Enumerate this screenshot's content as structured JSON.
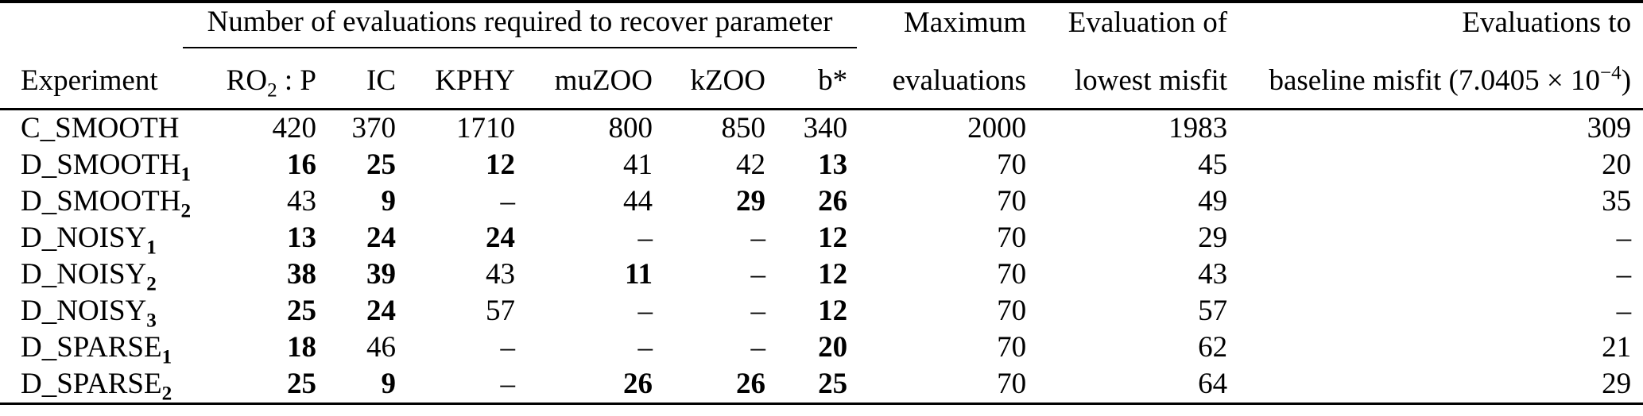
{
  "table": {
    "group_header": "Number of evaluations required to recover parameter",
    "columns": {
      "experiment": "Experiment",
      "maximum": {
        "line1": "Maximum",
        "line2": "evaluations"
      },
      "lowest_misfit": {
        "line1": "Evaluation of",
        "line2": "lowest misfit"
      },
      "baseline": {
        "line1": "Evaluations to",
        "line2_pre": "baseline misfit (7.0405 × 10",
        "line2_sup": "−4",
        "line2_post": ")"
      }
    },
    "param_headers": [
      {
        "pre": "RO",
        "sub": "2",
        "post": " : P"
      },
      {
        "pre": "IC",
        "sub": "",
        "post": ""
      },
      {
        "pre": "KPHY",
        "sub": "",
        "post": ""
      },
      {
        "pre": "muZOO",
        "sub": "",
        "post": ""
      },
      {
        "pre": "kZOO",
        "sub": "",
        "post": ""
      },
      {
        "pre": "b*",
        "sub": "",
        "post": ""
      }
    ],
    "rows": [
      {
        "experiment": {
          "base": "C_SMOOTH",
          "sub": ""
        },
        "cells": [
          {
            "v": "420",
            "b": false
          },
          {
            "v": "370",
            "b": false
          },
          {
            "v": "1710",
            "b": false
          },
          {
            "v": "800",
            "b": false
          },
          {
            "v": "850",
            "b": false
          },
          {
            "v": "340",
            "b": false
          },
          {
            "v": "2000",
            "b": false
          },
          {
            "v": "1983",
            "b": false
          },
          {
            "v": "309",
            "b": false
          }
        ]
      },
      {
        "experiment": {
          "base": "D_SMOOTH",
          "sub": "1"
        },
        "cells": [
          {
            "v": "16",
            "b": true
          },
          {
            "v": "25",
            "b": true
          },
          {
            "v": "12",
            "b": true
          },
          {
            "v": "41",
            "b": false
          },
          {
            "v": "42",
            "b": false
          },
          {
            "v": "13",
            "b": true
          },
          {
            "v": "70",
            "b": false
          },
          {
            "v": "45",
            "b": false
          },
          {
            "v": "20",
            "b": false
          }
        ]
      },
      {
        "experiment": {
          "base": "D_SMOOTH",
          "sub": "2"
        },
        "cells": [
          {
            "v": "43",
            "b": false
          },
          {
            "v": "9",
            "b": true
          },
          {
            "v": "–",
            "b": false
          },
          {
            "v": "44",
            "b": false
          },
          {
            "v": "29",
            "b": true
          },
          {
            "v": "26",
            "b": true
          },
          {
            "v": "70",
            "b": false
          },
          {
            "v": "49",
            "b": false
          },
          {
            "v": "35",
            "b": false
          }
        ]
      },
      {
        "experiment": {
          "base": "D_NOISY",
          "sub": "1"
        },
        "cells": [
          {
            "v": "13",
            "b": true
          },
          {
            "v": "24",
            "b": true
          },
          {
            "v": "24",
            "b": true
          },
          {
            "v": "–",
            "b": false
          },
          {
            "v": "–",
            "b": false
          },
          {
            "v": "12",
            "b": true
          },
          {
            "v": "70",
            "b": false
          },
          {
            "v": "29",
            "b": false
          },
          {
            "v": "–",
            "b": false
          }
        ]
      },
      {
        "experiment": {
          "base": "D_NOISY",
          "sub": "2"
        },
        "cells": [
          {
            "v": "38",
            "b": true
          },
          {
            "v": "39",
            "b": true
          },
          {
            "v": "43",
            "b": false
          },
          {
            "v": "11",
            "b": true
          },
          {
            "v": "–",
            "b": false
          },
          {
            "v": "12",
            "b": true
          },
          {
            "v": "70",
            "b": false
          },
          {
            "v": "43",
            "b": false
          },
          {
            "v": "–",
            "b": false
          }
        ]
      },
      {
        "experiment": {
          "base": "D_NOISY",
          "sub": "3"
        },
        "cells": [
          {
            "v": "25",
            "b": true
          },
          {
            "v": "24",
            "b": true
          },
          {
            "v": "57",
            "b": false
          },
          {
            "v": "–",
            "b": false
          },
          {
            "v": "–",
            "b": false
          },
          {
            "v": "12",
            "b": true
          },
          {
            "v": "70",
            "b": false
          },
          {
            "v": "57",
            "b": false
          },
          {
            "v": "–",
            "b": false
          }
        ]
      },
      {
        "experiment": {
          "base": "D_SPARSE",
          "sub": "1"
        },
        "cells": [
          {
            "v": "18",
            "b": true
          },
          {
            "v": "46",
            "b": false
          },
          {
            "v": "–",
            "b": false
          },
          {
            "v": "–",
            "b": false
          },
          {
            "v": "–",
            "b": false
          },
          {
            "v": "20",
            "b": true
          },
          {
            "v": "70",
            "b": false
          },
          {
            "v": "62",
            "b": false
          },
          {
            "v": "21",
            "b": false
          }
        ]
      },
      {
        "experiment": {
          "base": "D_SPARSE",
          "sub": "2"
        },
        "cells": [
          {
            "v": "25",
            "b": true
          },
          {
            "v": "9",
            "b": true
          },
          {
            "v": "–",
            "b": false
          },
          {
            "v": "26",
            "b": true
          },
          {
            "v": "26",
            "b": true
          },
          {
            "v": "25",
            "b": true
          },
          {
            "v": "70",
            "b": false
          },
          {
            "v": "64",
            "b": false
          },
          {
            "v": "29",
            "b": false
          }
        ]
      }
    ]
  }
}
